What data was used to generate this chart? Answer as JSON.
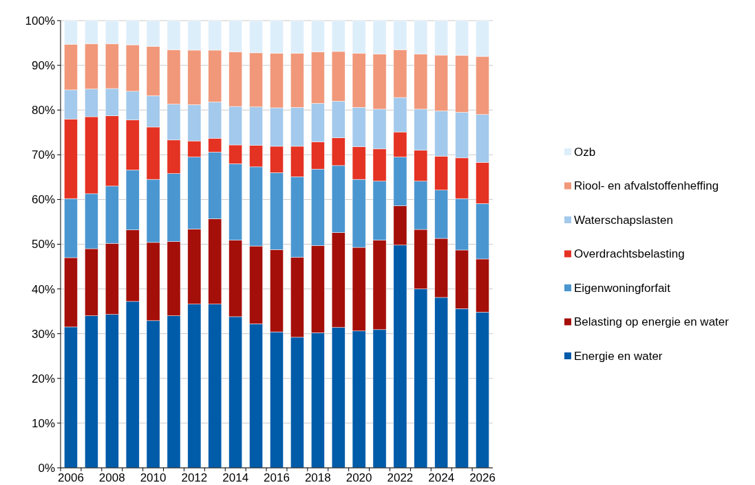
{
  "chart_data": {
    "type": "bar",
    "stacked": true,
    "categories": [
      "2006",
      null,
      "2008",
      null,
      "2010",
      null,
      "2012",
      null,
      "2014",
      null,
      "2016",
      null,
      "2018",
      null,
      "2020",
      null,
      "2022",
      null,
      "2024",
      null,
      "2026"
    ],
    "series": [
      {
        "name": "Energie en water",
        "color": "#005ba9",
        "values": [
          31.5,
          34,
          34.3,
          37.2,
          32.9,
          34,
          36.6,
          36.6,
          33.8,
          32.2,
          30.4,
          29.2,
          30.2,
          31.4,
          30.6,
          30.9,
          49.8,
          40,
          38.1,
          35.6,
          34.8
        ]
      },
      {
        "name": "Belasting op energie en water",
        "color": "#a50f0a",
        "values": [
          15.5,
          15,
          15.9,
          16,
          17.5,
          16.6,
          16.8,
          19.1,
          17.1,
          17.4,
          18.4,
          17.9,
          19.5,
          21.2,
          18.7,
          20,
          8.8,
          13.3,
          13.2,
          13.1,
          11.9
        ]
      },
      {
        "name": "Eigenwoningforfait",
        "color": "#4a96d0",
        "values": [
          13.2,
          12.3,
          12.8,
          13.4,
          14.1,
          15.2,
          16.1,
          14.9,
          17.1,
          17.7,
          17.2,
          18,
          17.1,
          15,
          15.2,
          13.2,
          10.9,
          10.8,
          10.8,
          11.5,
          12.4
        ]
      },
      {
        "name": "Overdrachtsbelasting",
        "color": "#e43223",
        "values": [
          17.8,
          17.2,
          15.7,
          11.2,
          11.7,
          7.5,
          3.6,
          3.1,
          4.2,
          4.8,
          5.9,
          6.8,
          6.1,
          6.2,
          7.3,
          7.2,
          5.6,
          6.9,
          7.6,
          9.1,
          9.2
        ]
      },
      {
        "name": "Waterschapslasten",
        "color": "#a3c9ec",
        "values": [
          6.5,
          6.2,
          6.1,
          6.4,
          7,
          8,
          8.1,
          8.1,
          8.6,
          8.6,
          8.6,
          8.7,
          8.6,
          8.2,
          8.8,
          8.9,
          7.7,
          9.2,
          10.1,
          10.2,
          10.7
        ]
      },
      {
        "name": "Riool- en afvalstoffenheffing",
        "color": "#f1987a",
        "values": [
          10.2,
          10.1,
          10,
          10.4,
          11,
          12.2,
          12.2,
          11.6,
          12.2,
          12.1,
          12.2,
          12.1,
          11.5,
          11.1,
          12.1,
          12.3,
          10.7,
          12.3,
          12.5,
          12.7,
          13
        ]
      },
      {
        "name": "Ozb",
        "color": "#ddeefb",
        "values": [
          5.3,
          5.2,
          5.2,
          5.4,
          5.8,
          6.5,
          6.6,
          6.6,
          7,
          7.2,
          7.3,
          7.3,
          7,
          6.9,
          7.3,
          7.5,
          6.5,
          7.5,
          7.7,
          7.8,
          8
        ]
      }
    ],
    "ylim": [
      0,
      100
    ],
    "yticks": [
      {
        "value": 0,
        "label": "0%"
      },
      {
        "value": 10,
        "label": "10%"
      },
      {
        "value": 20,
        "label": "20%"
      },
      {
        "value": 30,
        "label": "30%"
      },
      {
        "value": 40,
        "label": "40%"
      },
      {
        "value": 50,
        "label": "50%"
      },
      {
        "value": 60,
        "label": "60%"
      },
      {
        "value": 70,
        "label": "70%"
      },
      {
        "value": 80,
        "label": "80%"
      },
      {
        "value": 90,
        "label": "90%"
      },
      {
        "value": 100,
        "label": "100%"
      }
    ],
    "grid": "y",
    "legend": "right"
  }
}
